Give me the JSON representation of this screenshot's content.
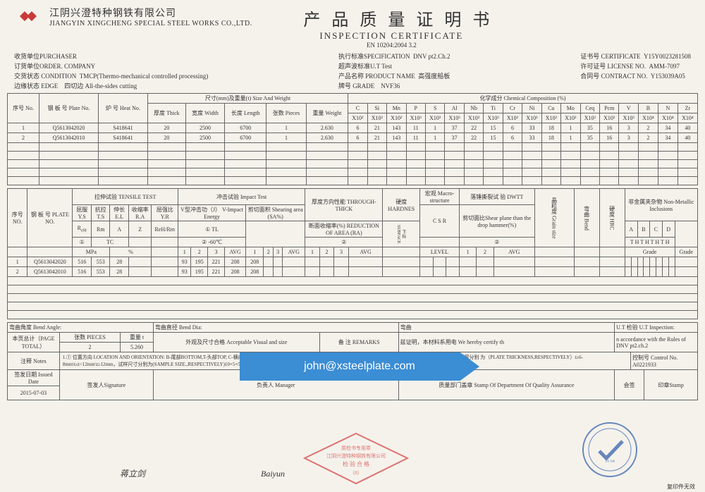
{
  "header": {
    "company_cn": "江阴兴澄特种钢铁有限公司",
    "company_en": "JIANGYIN XINGCHENG SPECIAL STEEL WORKS CO.,LTD.",
    "title_cn": "产品质量证明书",
    "title_en": "INSPECTION CERTIFICATE",
    "standard": "EN 10204:2004 3.2",
    "logo_color": "#c93a3a"
  },
  "spec": {
    "purchaser_label": "收货单位PURCHASER",
    "order_label": "订货单位ORDER. COMPANY",
    "condition_label": "交货状态\nCONDITION",
    "condition_value": "TMCP(Thermo-mechanical controlled processing)",
    "edge_label": "边缘状态\nEDGE",
    "edge_value": "四切边 All-the-sides cutting",
    "spec_label": "执行标准SPECIFICATION",
    "spec_value": "DNV pt2.Ch.2",
    "ut_label": "超声波标准U.T Test",
    "product_label": "产品名称\nPRODUCT NAME",
    "product_value": "高强度船板",
    "grade_label": "牌号\nGRADE",
    "grade_value": "NVF36",
    "cert_label": "证 书 号\nCERTIFICATE",
    "cert_value": "Y15Y0023281508",
    "license_label": "许可证号\nLICENSE NO.",
    "license_value": "AMM-7097",
    "contract_label": "合 同 号\nCONTRACT NO.",
    "contract_value": "Y153039A05"
  },
  "table1": {
    "headers": {
      "seq": "序号\nNo.",
      "plate": "钢 板 号\nPlate No.",
      "heat": "炉 号\nHeat No.",
      "size_weight": "尺寸(mm)及重量(t)\nSize And Weight",
      "thick": "厚度\nThick",
      "width": "宽度\nWidth",
      "length": "长度\nLength",
      "pieces": "张数\nPieces",
      "weight": "重量\nWeight",
      "chem": "化学成分 Chemical Composition (%)",
      "elements": [
        "C",
        "Si",
        "Mn",
        "P",
        "S",
        "Al",
        "Nb",
        "Ti",
        "Cr",
        "Ni",
        "Cu",
        "Mo",
        "Ceq",
        "Pcm",
        "V",
        "B",
        "N",
        "Zr"
      ],
      "mult": [
        "X10²",
        "X10²",
        "X10²",
        "X10³",
        "X10³",
        "X10³",
        "X10³",
        "X10³",
        "X10²",
        "X10²",
        "X10²",
        "X10²",
        "X10²",
        "X10²",
        "X10³",
        "X10⁴",
        "X10⁴",
        "X10⁴"
      ]
    },
    "rows": [
      {
        "n": "1",
        "plate": "Q5613042020",
        "heat": "S418641",
        "thick": "20",
        "width": "2500",
        "length": "6700",
        "pieces": "1",
        "weight": "2.630",
        "chem": [
          "6",
          "21",
          "143",
          "11",
          "1",
          "37",
          "22",
          "15",
          "6",
          "33",
          "18",
          "1",
          "35",
          "16",
          "3",
          "2",
          "34",
          "40"
        ]
      },
      {
        "n": "2",
        "plate": "Q5613042010",
        "heat": "S418641",
        "thick": "20",
        "width": "2500",
        "length": "6700",
        "pieces": "1",
        "weight": "2.630",
        "chem": [
          "6",
          "21",
          "143",
          "11",
          "1",
          "37",
          "22",
          "15",
          "6",
          "33",
          "18",
          "1",
          "35",
          "16",
          "3",
          "2",
          "34",
          "40"
        ]
      }
    ]
  },
  "table2": {
    "headers": {
      "seq": "序号\nNO.",
      "plate": "钢 板 号\nPLATE NO.",
      "tensile": "拉伸试验 TENSILE TEST",
      "ys": "屈服\nY.S",
      "ts": "抗拉\nT.S",
      "el": "伸长\nE.L",
      "ra": "收缩率\nR.A",
      "ratio": "屈强比Y.R",
      "rm": "Rm",
      "a": "A",
      "z": "Z",
      "rr": "ReH/Rm",
      "tc": "TC",
      "mpa": "MPa",
      "pct": "%",
      "impact": "冲击试验 Impact Test",
      "venergy": "V型冲击功（J）\nV-Impact Energy",
      "shear": "剪切面积\nShearing area\n(SA%)",
      "tl": "① TL",
      "t60": "② -60℃",
      "through": "厚度方向性能\nTHROUGH-THICK",
      "roa": "断面收缩率(%)\nREDUCTION OF\nAREA (RA)",
      "hardness": "硬度\nHARDNES",
      "macro": "宏观\nMacro-structure",
      "csr": "C  S  R",
      "dwtt": "落锤撕裂试\n验 DWTT",
      "shearplane": "剪切面比Shear\nplane than the\ndrop hammer(%)",
      "nonmet": "非金属夹杂物\nNon-Metallic Inclusions",
      "avg": "AVG",
      "level": "LEVEL",
      "grade": "Grade",
      "abcd": [
        "A",
        "B",
        "C",
        "D"
      ],
      "th": "T  H  T  H  T  H  T  H",
      "grain": "晶粒度\nGrain size",
      "code": "代号\nCODE",
      "sub": "下标\nSUBFACE",
      "bend": "弯曲\nBend",
      "hrc": "硬度\nHRC"
    },
    "rows": [
      {
        "n": "1",
        "plate": "Q5613042020",
        "ys": "516",
        "ts": "553",
        "el": "28",
        "ratio": "93",
        "v1": "195",
        "v2": "221",
        "v3": "208",
        "vavg": "208"
      },
      {
        "n": "2",
        "plate": "Q5613042010",
        "ys": "516",
        "ts": "553",
        "el": "28",
        "ratio": "93",
        "v1": "195",
        "v2": "221",
        "v3": "208",
        "vavg": "208"
      }
    ]
  },
  "bottom": {
    "bend_angle": "弯曲角度 Bend Angle:",
    "bend_dia": "弯曲直径 Bend Dia:",
    "ut": "U.T 检验 U.T Inspection:",
    "page_total": "本页总计（PAGE TOTAL）",
    "pieces_label": "张数 PIECES",
    "pieces": "2",
    "weight_label": "重量 t",
    "weight": "5.260",
    "visual": "外观及尺寸合格\nAcceptable Visual and size",
    "remarks_label": "备 注\nREMARKS",
    "remarks": "兹证明，本材料系用电\nWe hereby certify th",
    "accordance": "n accordance with the Rules of DNV pt2.ch.2",
    "notes_label": "注释\nNotes",
    "notes": "1.① 位置方向 LOCATION AND ORIENTATION: B-尾部BOTTOM,T-头部TOP, C-横向TRANS, L-纵向LONGL, Z-板厚方向THROUGH-THICK. 2.冲击试样尺寸（IMPACT SAMPLE SIZE）: 板厚分别\n为（PLATE THICKNESS,RESPECTIVELY）t≥6-8mm\\t≤t<12mm\\t≥12mm，试样尺寸分别为(SAMPLE SIZE.,RESPECTIVELY)10×5×55\\10×7.5×55\\10×10×55mm，标准或协议另有要求的除\n外。③ 试验温度 TEMPERATURE(℃)",
    "control_label": "控制号 Control No.",
    "control": "A0221933",
    "issued_label": "签发日期\nIssued Date",
    "issued": "2015-07-03",
    "sig_label": "签发人Signature",
    "sig": "蒋立剑",
    "mgr_label": "负责人 Manager",
    "mgr": "Baiyun",
    "stamp_label": "质量部门盖章\nStamp Of Department Of\nQuality Assurance",
    "stamp_red": "质检书专用章\n江阴兴澄特种钢铁有限公司\n检 验 合 格\n（8）",
    "footer_right": "印章Stamp",
    "copy": "复印件无效",
    "huiqian": "会签"
  },
  "watermark": "john@xsteelplate.com",
  "colors": {
    "watermark_bg": "#3b8dd4",
    "stamp_red": "#d43b3b",
    "stamp_blue": "#2b5aa8"
  }
}
